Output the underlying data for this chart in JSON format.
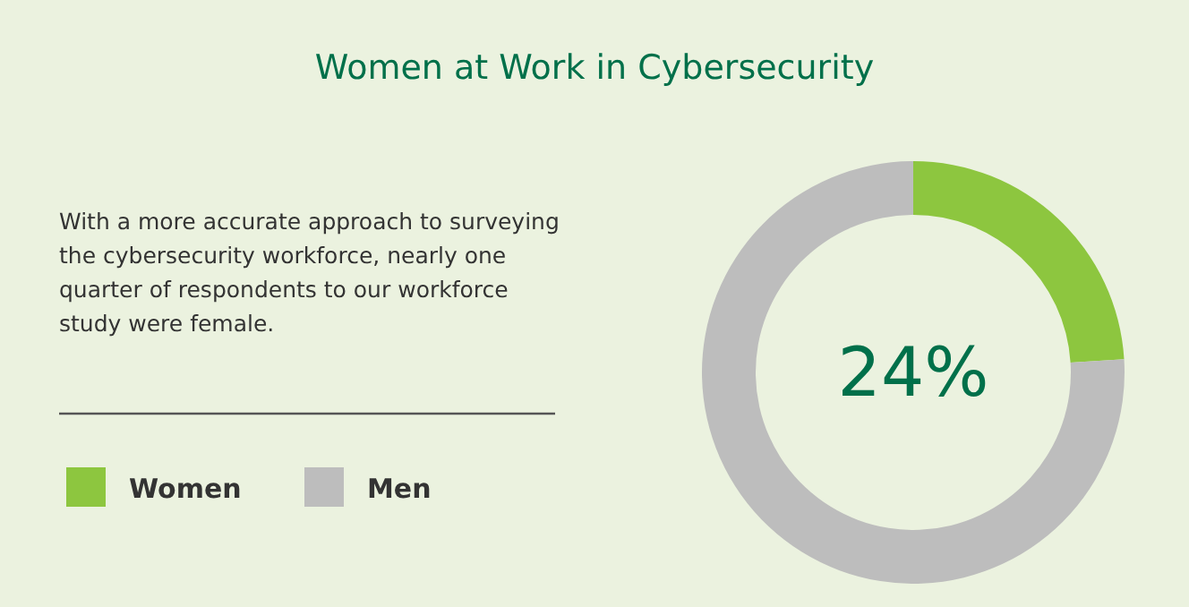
{
  "chart_data": {
    "type": "donut",
    "title": "Women at Work in Cybersecurity",
    "categories": [
      "Women",
      "Men"
    ],
    "values": [
      24,
      76
    ],
    "colors": [
      "#8dc63f",
      "#bdbdbd"
    ],
    "value_labels": [
      "24%",
      null
    ],
    "legend": "bottom left",
    "annotations": [
      "With a more accurate approach to surveying the cybersecurity workforce, nearly one quarter of respondents to our workforce study were female."
    ]
  }
}
